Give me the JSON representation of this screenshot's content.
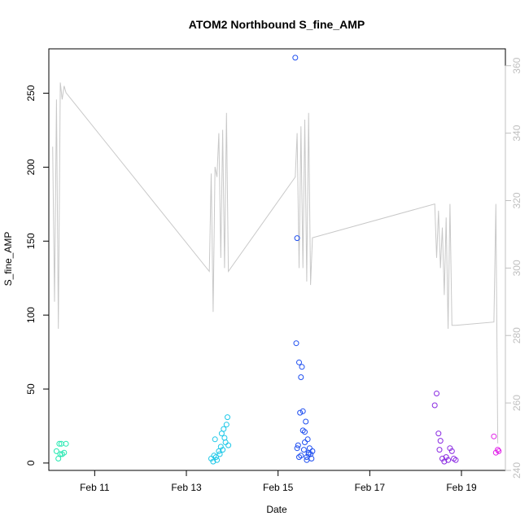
{
  "chart_data": {
    "type": "scatter",
    "title": "ATOM2 Northbound S_fine_AMP",
    "xlabel": "Date",
    "ylabel": "S_fine_AMP",
    "y2label": "",
    "xlim": [
      "Feb 10 00:00",
      "Feb 19 23:00"
    ],
    "ylim": [
      -5,
      280
    ],
    "y2lim": [
      240,
      365
    ],
    "grid": false,
    "x_ticks": [
      "Feb 11",
      "Feb 13",
      "Feb 15",
      "Feb 17",
      "Feb 19"
    ],
    "y_ticks": [
      0,
      50,
      100,
      150,
      200,
      250
    ],
    "y2_ticks": [
      240,
      260,
      280,
      300,
      320,
      340,
      360
    ],
    "colors": {
      "secondary_line": "#c8c8c8",
      "right_axis": "#c0c0c0"
    },
    "scatter_series": [
      {
        "color": "#22e8b0",
        "x": [
          "Feb 10 04:00",
          "Feb 10 05:00",
          "Feb 10 05:30",
          "Feb 10 06:00",
          "Feb 10 06:30",
          "Feb 10 07:00",
          "Feb 10 08:00",
          "Feb 10 09:00"
        ],
        "y": [
          8,
          3,
          13,
          6,
          13,
          6,
          7,
          13
        ]
      },
      {
        "color": "#1ec8e8",
        "x": [
          "Feb 13 13:00",
          "Feb 13 14:00",
          "Feb 13 14:30",
          "Feb 13 15:00",
          "Feb 13 15:30",
          "Feb 13 16:00",
          "Feb 13 17:00",
          "Feb 13 17:30",
          "Feb 13 18:00",
          "Feb 13 18:30",
          "Feb 13 19:00",
          "Feb 13 19:30",
          "Feb 13 20:00",
          "Feb 13 20:30",
          "Feb 13 21:00",
          "Feb 13 21:30",
          "Feb 13 22:00"
        ],
        "y": [
          3,
          1,
          5,
          16,
          4,
          2,
          8,
          6,
          11,
          20,
          9,
          23,
          17,
          14,
          26,
          31,
          12
        ]
      },
      {
        "color": "#1e4ef0",
        "x": [
          "Feb 15 09:00",
          "Feb 15 09:30",
          "Feb 15 10:00",
          "Feb 15 10:30",
          "Feb 15 11:00",
          "Feb 15 11:30",
          "Feb 15 12:00",
          "Feb 15 12:30",
          "Feb 15 13:00",
          "Feb 15 13:30",
          "Feb 15 14:00",
          "Feb 15 14:30",
          "Feb 15 15:00",
          "Feb 15 15:30",
          "Feb 15 16:00",
          "Feb 15 16:30",
          "Feb 15 17:00",
          "Feb 15 17:30",
          "Feb 15 18:00",
          "Feb 15 10:00",
          "Feb 15 11:00",
          "Feb 15 12:00",
          "Feb 15 13:00",
          "Feb 15 14:00",
          "Feb 15 15:00",
          "Feb 15 16:00"
        ],
        "y": [
          274,
          81,
          152,
          12,
          68,
          34,
          58,
          65,
          35,
          9,
          21,
          28,
          4,
          16,
          7,
          10,
          6,
          3,
          8,
          10,
          4,
          5,
          22,
          14,
          2,
          6
        ]
      },
      {
        "color": "#8a2be2",
        "x": [
          "Feb 18 10:00",
          "Feb 18 11:00",
          "Feb 18 12:00",
          "Feb 18 12:30",
          "Feb 18 13:00",
          "Feb 18 14:00",
          "Feb 18 15:00",
          "Feb 18 16:00",
          "Feb 18 17:00",
          "Feb 18 18:00",
          "Feb 18 19:00",
          "Feb 18 20:00",
          "Feb 18 21:00"
        ],
        "y": [
          39,
          47,
          20,
          9,
          15,
          3,
          1,
          4,
          2,
          10,
          8,
          3,
          2
        ]
      },
      {
        "color": "#e020e8",
        "x": [
          "Feb 19 17:00",
          "Feb 19 18:00",
          "Feb 19 19:00",
          "Feb 19 19:30"
        ],
        "y": [
          18,
          7,
          9,
          8
        ]
      }
    ],
    "line_series": {
      "axis": "right",
      "x": [
        "Feb 10 02:00",
        "Feb 10 03:00",
        "Feb 10 04:00",
        "Feb 10 05:00",
        "Feb 10 06:00",
        "Feb 10 07:00",
        "Feb 10 08:00",
        "Feb 10 09:00",
        "Feb 13 12:00",
        "Feb 13 13:00",
        "Feb 13 14:00",
        "Feb 13 15:00",
        "Feb 13 16:00",
        "Feb 13 17:00",
        "Feb 13 18:00",
        "Feb 13 19:00",
        "Feb 13 20:00",
        "Feb 13 21:00",
        "Feb 13 22:00",
        "Feb 15 09:00",
        "Feb 15 10:00",
        "Feb 15 11:00",
        "Feb 15 12:00",
        "Feb 15 13:00",
        "Feb 15 14:00",
        "Feb 15 15:00",
        "Feb 15 16:00",
        "Feb 15 17:00",
        "Feb 15 18:00",
        "Feb 18 10:00",
        "Feb 18 11:00",
        "Feb 18 12:00",
        "Feb 18 13:00",
        "Feb 18 14:00",
        "Feb 18 15:00",
        "Feb 18 16:00",
        "Feb 18 17:00",
        "Feb 18 18:00",
        "Feb 18 19:00",
        "Feb 18 20:00",
        "Feb 18 21:00",
        "Feb 19 17:00",
        "Feb 19 18:00",
        "Feb 19 19:00"
      ],
      "y": [
        336,
        290,
        350,
        282,
        355,
        350,
        354,
        352,
        299,
        328,
        287,
        330,
        327,
        340,
        303,
        341,
        300,
        346,
        299,
        327,
        340,
        300,
        342,
        300,
        344,
        296,
        346,
        295,
        309,
        319,
        303,
        317,
        300,
        312,
        292,
        315,
        282,
        319,
        283,
        283,
        283,
        284,
        319,
        248
      ]
    }
  }
}
